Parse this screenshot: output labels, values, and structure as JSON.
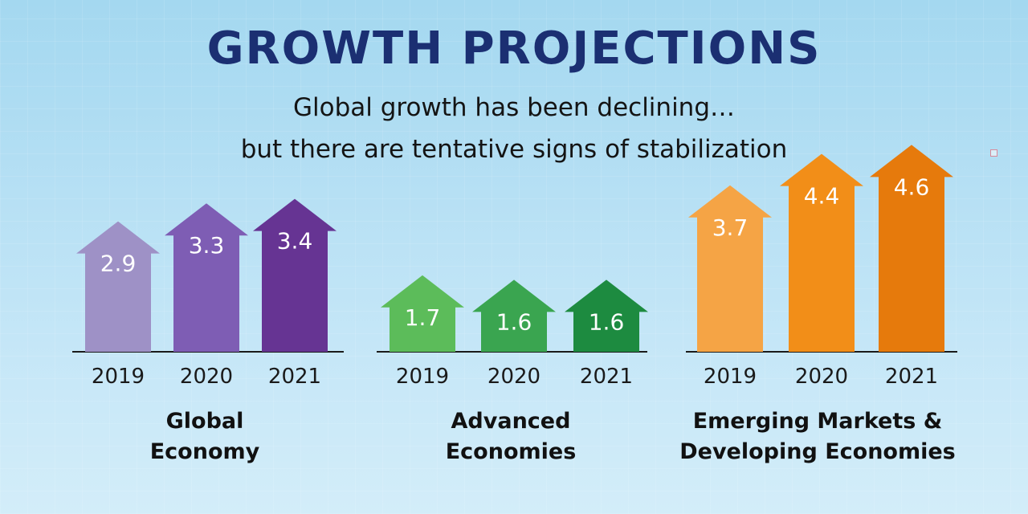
{
  "title": "GROWTH PROJECTIONS",
  "subtitle_lines": [
    "Global growth has been declining…",
    "but there are tentative signs of stabilization"
  ],
  "chart_data": [
    {
      "type": "bar",
      "group_label": [
        "Global",
        "Economy"
      ],
      "categories": [
        "2019",
        "2020",
        "2021"
      ],
      "values": [
        2.9,
        3.3,
        3.4
      ],
      "value_labels": [
        "2.9",
        "3.3",
        "3.4"
      ],
      "colors": [
        "#9e91c6",
        "#7e5db4",
        "#663493"
      ]
    },
    {
      "type": "bar",
      "group_label": [
        "Advanced",
        "Economies"
      ],
      "categories": [
        "2019",
        "2020",
        "2021"
      ],
      "values": [
        1.7,
        1.6,
        1.6
      ],
      "value_labels": [
        "1.7",
        "1.6",
        "1.6"
      ],
      "colors": [
        "#5cbc5a",
        "#3aa550",
        "#1d8b40"
      ]
    },
    {
      "type": "bar",
      "group_label": [
        "Emerging Markets &",
        "Developing Economies"
      ],
      "categories": [
        "2019",
        "2020",
        "2021"
      ],
      "values": [
        3.7,
        4.4,
        4.6
      ],
      "value_labels": [
        "3.7",
        "4.4",
        "4.6"
      ],
      "colors": [
        "#f5a445",
        "#f28e18",
        "#e67a0c"
      ]
    }
  ],
  "text_color": "#1b2f72"
}
